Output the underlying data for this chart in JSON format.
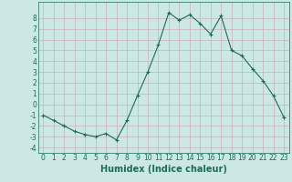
{
  "x": [
    0,
    1,
    2,
    3,
    4,
    5,
    6,
    7,
    8,
    9,
    10,
    11,
    12,
    13,
    14,
    15,
    16,
    17,
    18,
    19,
    20,
    21,
    22,
    23
  ],
  "y": [
    -1,
    -1.5,
    -2,
    -2.5,
    -2.8,
    -3,
    -2.7,
    -3.3,
    -1.5,
    0.8,
    3,
    5.5,
    8.5,
    7.8,
    8.3,
    7.5,
    6.5,
    8.2,
    5,
    4.5,
    3.3,
    2.2,
    0.8,
    -1.2
  ],
  "line_color": "#1a6b5a",
  "marker": "+",
  "marker_size": 3,
  "bg_color": "#cce8e4",
  "grid_color": "#c8b0b8",
  "xlabel": "Humidex (Indice chaleur)",
  "xlim": [
    -0.5,
    23.5
  ],
  "ylim": [
    -4.5,
    9.5
  ],
  "yticks": [
    -4,
    -3,
    -2,
    -1,
    0,
    1,
    2,
    3,
    4,
    5,
    6,
    7,
    8
  ],
  "xticks": [
    0,
    1,
    2,
    3,
    4,
    5,
    6,
    7,
    8,
    9,
    10,
    11,
    12,
    13,
    14,
    15,
    16,
    17,
    18,
    19,
    20,
    21,
    22,
    23
  ],
  "tick_label_fontsize": 5.5,
  "xlabel_fontsize": 7,
  "line_width": 0.8,
  "marker_size_pt": 3.5
}
